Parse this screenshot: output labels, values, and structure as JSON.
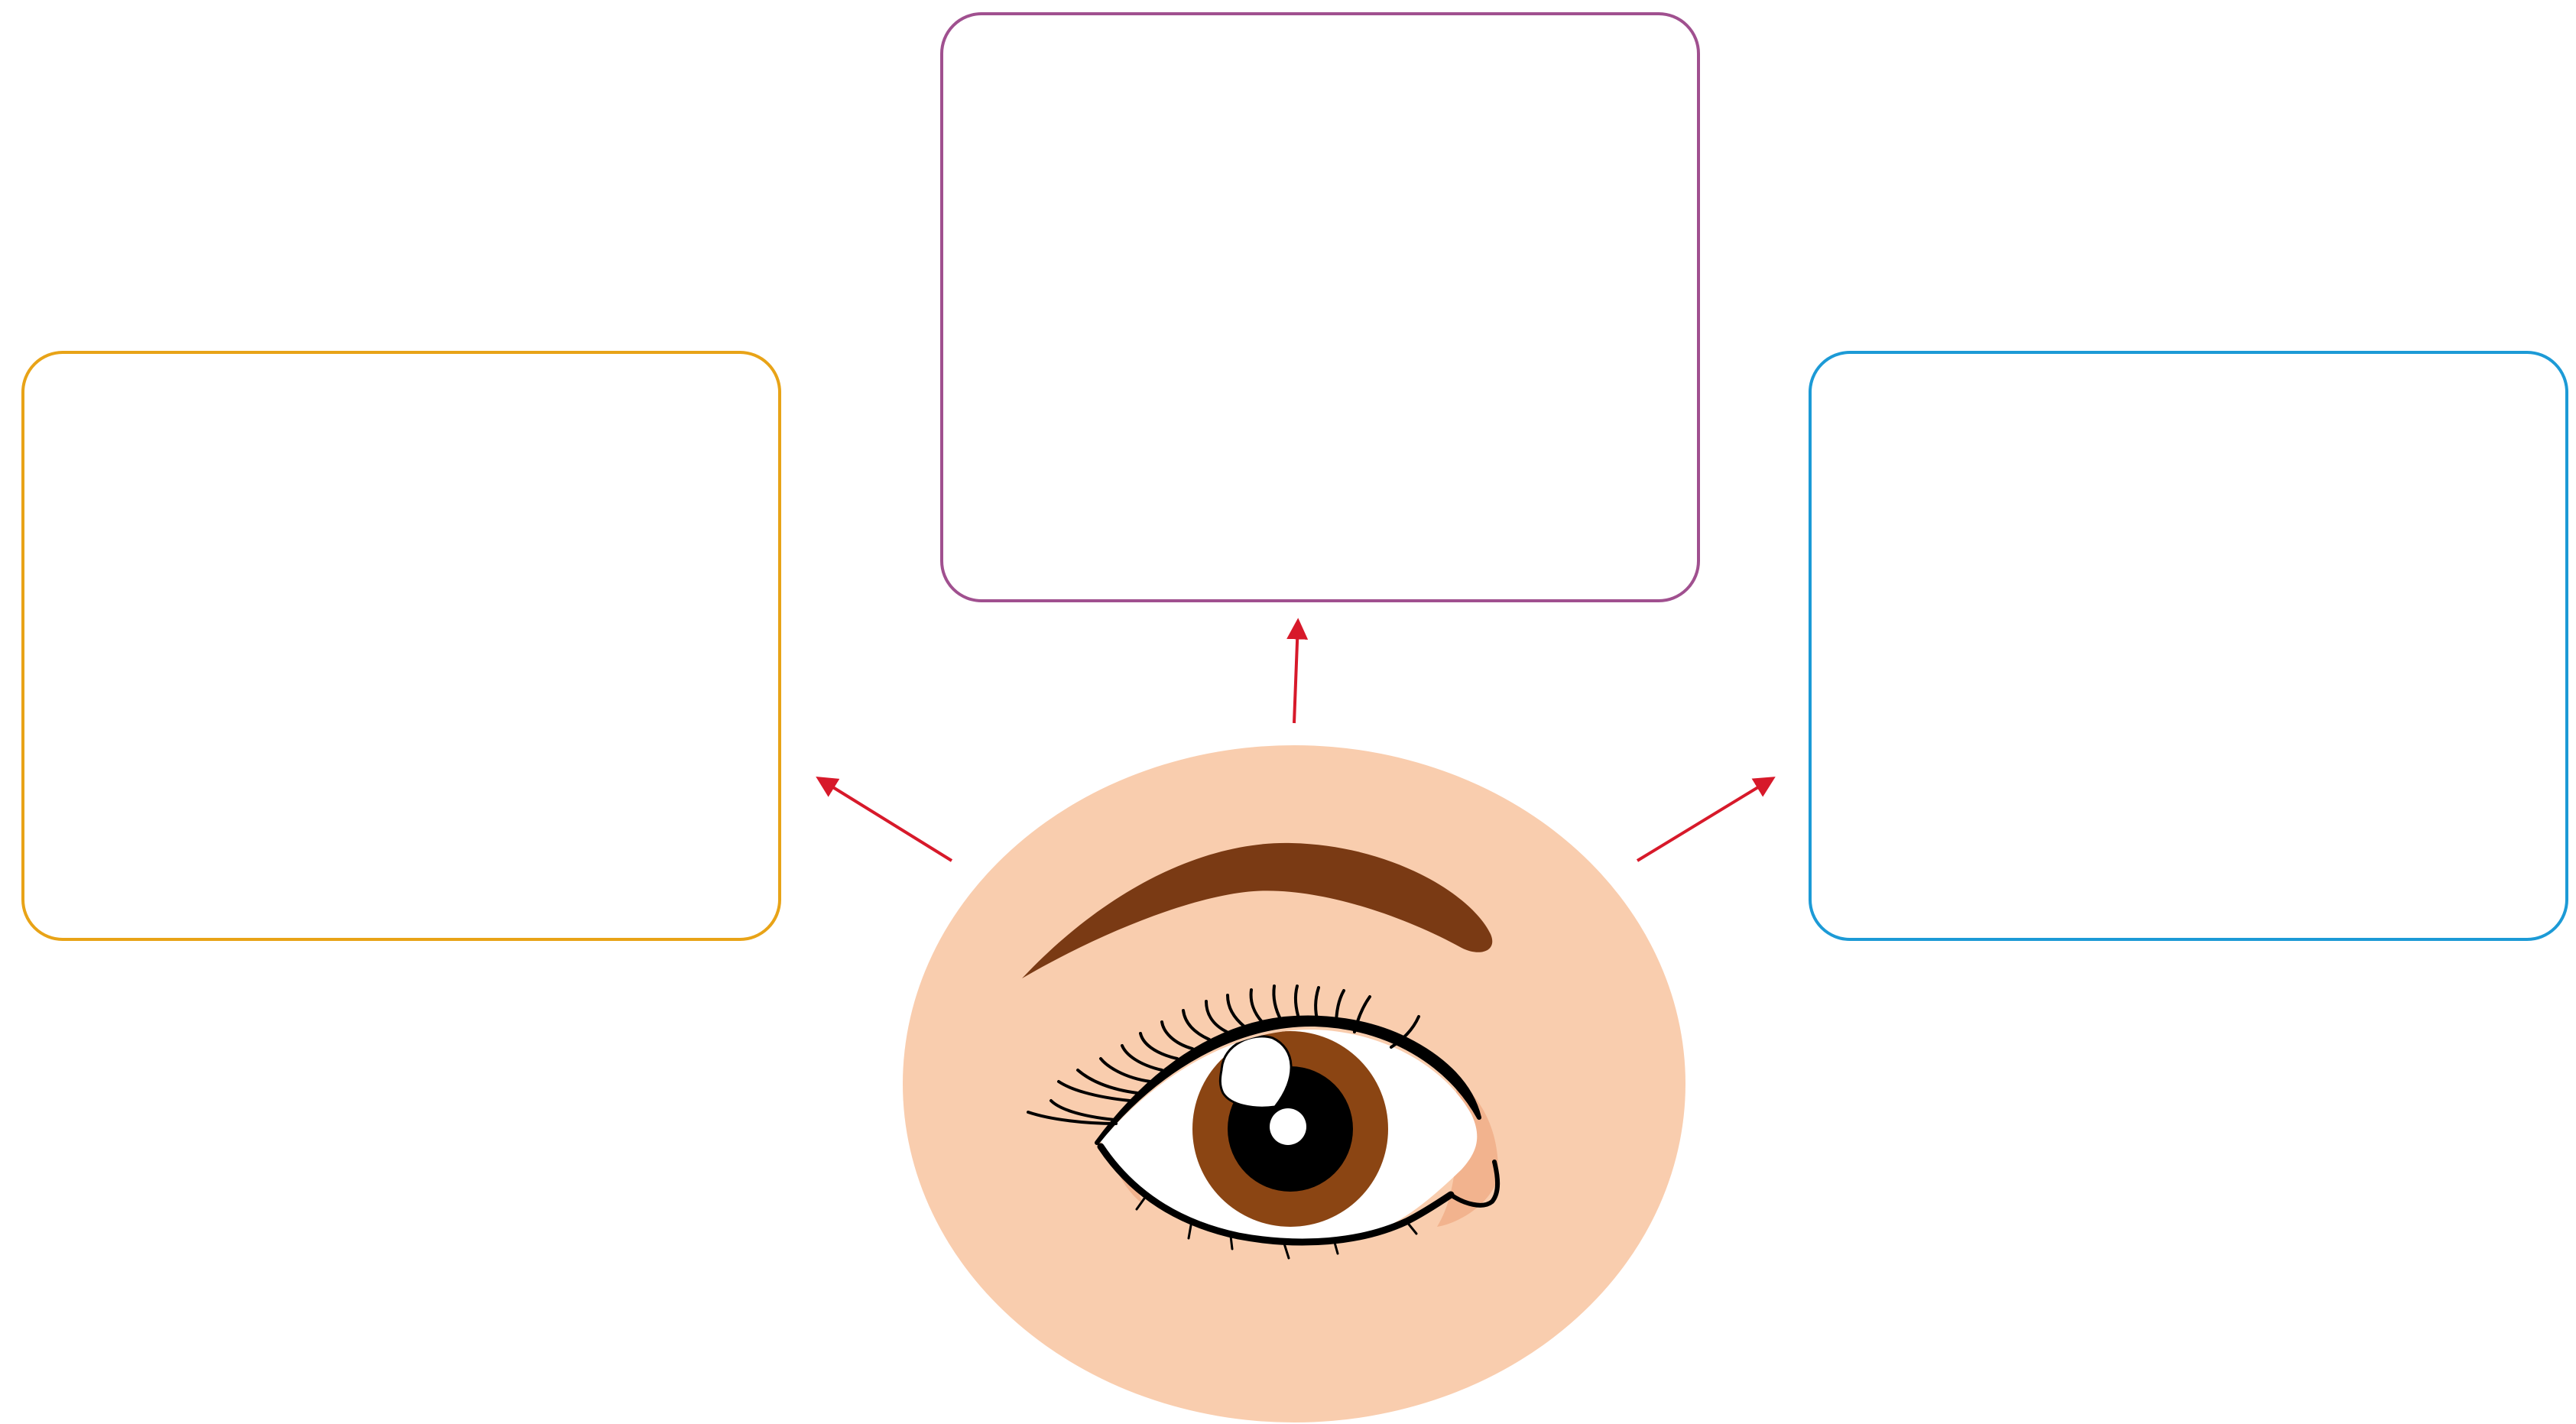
{
  "diagram": {
    "colors": {
      "box_left": "#E8A317",
      "box_top": "#A0508F",
      "box_right": "#1C9AD6",
      "arrow": "#D7192A",
      "skin": "#F9CDAE",
      "skin_shadow": "#F2B38E",
      "brow": "#7A3A14",
      "iris": "#8B4513",
      "pupil": "#000000",
      "outline": "#000000",
      "highlight": "#FFFFFF"
    },
    "boxes": [
      {
        "id": "left",
        "text": ""
      },
      {
        "id": "top",
        "text": ""
      },
      {
        "id": "right",
        "text": ""
      }
    ],
    "center_icon": "eye-icon"
  }
}
